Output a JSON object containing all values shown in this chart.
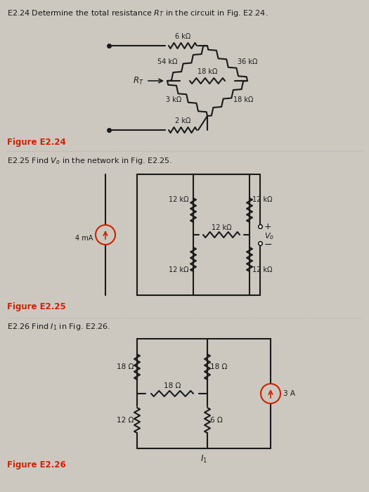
{
  "bg_color": "#ccc8c0",
  "text_color": "#1a1a1a",
  "red_color": "#cc2200",
  "blue_color": "#2255aa",
  "line_color": "#1a1a1a",
  "fig_width": 5.25,
  "fig_height": 7.0,
  "title1": "E2.24 Determine the total resistance $R_T$ in the circuit in Fig. E2.24.",
  "title2": "E2.25 Find $V_o$ in the network in Fig. E2.25.",
  "title3": "E2.26 Find $I_1$ in Fig. E2.26.",
  "fig_label1": "Figure E2.24",
  "fig_label2": "Figure E2.25",
  "fig_label3": "Figure E2.26"
}
